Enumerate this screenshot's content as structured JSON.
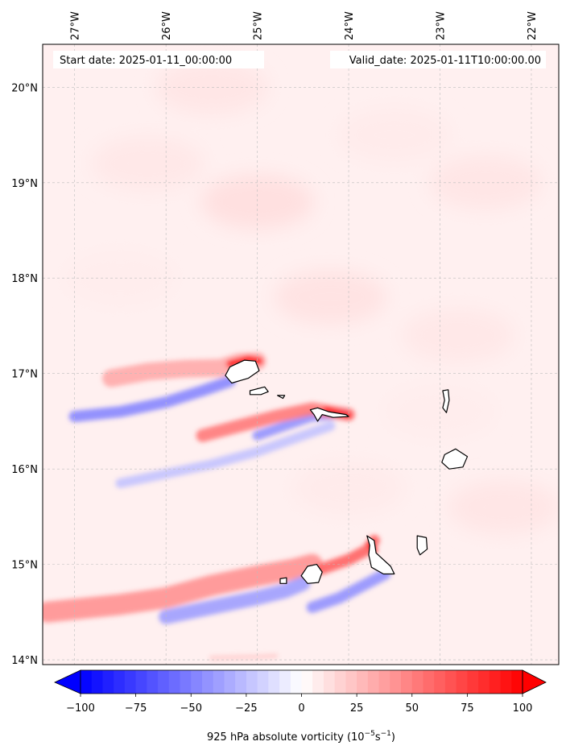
{
  "map": {
    "start_label": "Start date: 2025-01-11_00:00:00",
    "valid_label": "Valid_date: 2025-01-11T10:00:00.00",
    "lon_ticks": [
      "27°W",
      "26°W",
      "25°W",
      "24°W",
      "23°W",
      "22°W"
    ],
    "lat_ticks": [
      "20°N",
      "19°N",
      "18°N",
      "17°N",
      "16°N",
      "15°N",
      "14°N"
    ],
    "extent": {
      "lon": [
        -27.35,
        -21.7
      ],
      "lat": [
        13.95,
        20.45
      ]
    },
    "background_vorticity": 6
  },
  "colorbar": {
    "label_prefix": "925 hPa absolute vorticity (10",
    "label_exp1": "−5",
    "label_mid": "s",
    "label_exp2": "−1",
    "label_suffix": ")",
    "ticks": [
      "−100",
      "−75",
      "−50",
      "−25",
      "0",
      "25",
      "50",
      "75",
      "100"
    ],
    "tick_values": [
      -100,
      -75,
      -50,
      -25,
      0,
      25,
      50,
      75,
      100
    ],
    "min": -100,
    "max": 100,
    "extend": "both",
    "cmap": "bwr",
    "colors": {
      "negative": "#0000ff",
      "zero": "#ffffff",
      "positive": "#ff0000"
    }
  },
  "islands": [
    {
      "name": "Santo Antão",
      "outline": [
        [
          -25.3,
          17.07
        ],
        [
          -25.14,
          17.14
        ],
        [
          -25.02,
          17.13
        ],
        [
          -24.98,
          17.03
        ],
        [
          -25.1,
          16.95
        ],
        [
          -25.28,
          16.9
        ],
        [
          -25.35,
          16.98
        ]
      ]
    },
    {
      "name": "São Vicente",
      "outline": [
        [
          -25.08,
          16.82
        ],
        [
          -24.92,
          16.86
        ],
        [
          -24.88,
          16.81
        ],
        [
          -24.96,
          16.78
        ],
        [
          -25.08,
          16.78
        ]
      ]
    },
    {
      "name": "Santa Luzia",
      "outline": [
        [
          -24.78,
          16.77
        ],
        [
          -24.7,
          16.77
        ],
        [
          -24.72,
          16.74
        ]
      ]
    },
    {
      "name": "São Nicolau",
      "outline": [
        [
          -24.42,
          16.62
        ],
        [
          -24.34,
          16.64
        ],
        [
          -24.22,
          16.6
        ],
        [
          -24.03,
          16.57
        ],
        [
          -24.0,
          16.55
        ],
        [
          -24.17,
          16.54
        ],
        [
          -24.29,
          16.57
        ],
        [
          -24.34,
          16.5
        ],
        [
          -24.38,
          16.57
        ]
      ]
    },
    {
      "name": "Sal",
      "outline": [
        [
          -22.97,
          16.82
        ],
        [
          -22.91,
          16.83
        ],
        [
          -22.9,
          16.72
        ],
        [
          -22.93,
          16.59
        ],
        [
          -22.97,
          16.64
        ],
        [
          -22.95,
          16.72
        ]
      ]
    },
    {
      "name": "Boa Vista",
      "outline": [
        [
          -22.95,
          16.15
        ],
        [
          -22.83,
          16.21
        ],
        [
          -22.7,
          16.13
        ],
        [
          -22.75,
          16.02
        ],
        [
          -22.9,
          16.0
        ],
        [
          -22.98,
          16.07
        ]
      ]
    },
    {
      "name": "Maio",
      "outline": [
        [
          -23.25,
          15.3
        ],
        [
          -23.15,
          15.28
        ],
        [
          -23.14,
          15.16
        ],
        [
          -23.22,
          15.1
        ],
        [
          -23.25,
          15.17
        ]
      ]
    },
    {
      "name": "Santiago",
      "outline": [
        [
          -23.8,
          15.3
        ],
        [
          -23.72,
          15.25
        ],
        [
          -23.7,
          15.12
        ],
        [
          -23.54,
          14.98
        ],
        [
          -23.5,
          14.9
        ],
        [
          -23.62,
          14.9
        ],
        [
          -23.75,
          14.97
        ],
        [
          -23.78,
          15.1
        ],
        [
          -23.77,
          15.2
        ]
      ]
    },
    {
      "name": "Fogo",
      "outline": [
        [
          -24.45,
          14.98
        ],
        [
          -24.35,
          15.0
        ],
        [
          -24.29,
          14.92
        ],
        [
          -24.33,
          14.81
        ],
        [
          -24.45,
          14.8
        ],
        [
          -24.52,
          14.88
        ]
      ]
    },
    {
      "name": "Brava",
      "outline": [
        [
          -24.75,
          14.85
        ],
        [
          -24.68,
          14.86
        ],
        [
          -24.68,
          14.8
        ],
        [
          -24.75,
          14.8
        ]
      ]
    }
  ],
  "vorticity_bands": [
    {
      "points": [
        [
          -26.6,
          16.95
        ],
        [
          -26.2,
          17.02
        ],
        [
          -25.8,
          17.05
        ],
        [
          -25.4,
          17.06
        ],
        [
          -25.2,
          17.12
        ],
        [
          -25.0,
          17.13
        ]
      ],
      "value": 35,
      "width": 22
    },
    {
      "points": [
        [
          -25.3,
          17.1
        ],
        [
          -25.1,
          17.15
        ],
        [
          -24.98,
          17.13
        ]
      ],
      "value": 100,
      "width": 9
    },
    {
      "points": [
        [
          -27.0,
          16.55
        ],
        [
          -26.5,
          16.6
        ],
        [
          -26.0,
          16.7
        ],
        [
          -25.6,
          16.82
        ],
        [
          -25.3,
          16.92
        ]
      ],
      "value": -50,
      "width": 14
    },
    {
      "points": [
        [
          -25.0,
          16.35
        ],
        [
          -24.7,
          16.45
        ],
        [
          -24.4,
          16.55
        ],
        [
          -24.05,
          16.58
        ]
      ],
      "value": -45,
      "width": 12
    },
    {
      "points": [
        [
          -25.6,
          16.35
        ],
        [
          -25.2,
          16.45
        ],
        [
          -24.8,
          16.55
        ],
        [
          -24.4,
          16.63
        ],
        [
          -24.0,
          16.57
        ]
      ],
      "value": 55,
      "width": 16
    },
    {
      "points": [
        [
          -24.25,
          16.62
        ],
        [
          -24.0,
          16.56
        ]
      ],
      "value": 100,
      "width": 7
    },
    {
      "points": [
        [
          -26.5,
          15.85
        ],
        [
          -26.0,
          15.95
        ],
        [
          -25.5,
          16.05
        ],
        [
          -25.0,
          16.18
        ],
        [
          -24.5,
          16.35
        ],
        [
          -24.2,
          16.45
        ]
      ],
      "value": -25,
      "width": 12
    },
    {
      "points": [
        [
          -27.3,
          14.5
        ],
        [
          -26.5,
          14.58
        ],
        [
          -26.0,
          14.65
        ],
        [
          -25.5,
          14.78
        ],
        [
          -25.0,
          14.88
        ],
        [
          -24.6,
          14.95
        ],
        [
          -24.4,
          15.0
        ]
      ],
      "value": 45,
      "width": 26
    },
    {
      "points": [
        [
          -26.0,
          14.45
        ],
        [
          -25.5,
          14.55
        ],
        [
          -25.0,
          14.65
        ],
        [
          -24.7,
          14.72
        ],
        [
          -24.5,
          14.8
        ]
      ],
      "value": -40,
      "width": 18
    },
    {
      "points": [
        [
          -24.4,
          14.55
        ],
        [
          -24.1,
          14.65
        ],
        [
          -23.8,
          14.8
        ],
        [
          -23.6,
          14.9
        ]
      ],
      "value": -45,
      "width": 14
    },
    {
      "points": [
        [
          -24.3,
          14.95
        ],
        [
          -24.0,
          15.05
        ],
        [
          -23.8,
          15.15
        ],
        [
          -23.72,
          15.25
        ]
      ],
      "value": 65,
      "width": 14
    },
    {
      "points": [
        [
          -23.76,
          15.2
        ],
        [
          -23.72,
          15.15
        ]
      ],
      "value": 100,
      "width": 8
    },
    {
      "points": [
        [
          -25.5,
          14.02
        ],
        [
          -25.0,
          14.03
        ],
        [
          -24.8,
          14.04
        ]
      ],
      "value": 20,
      "width": 6
    }
  ]
}
